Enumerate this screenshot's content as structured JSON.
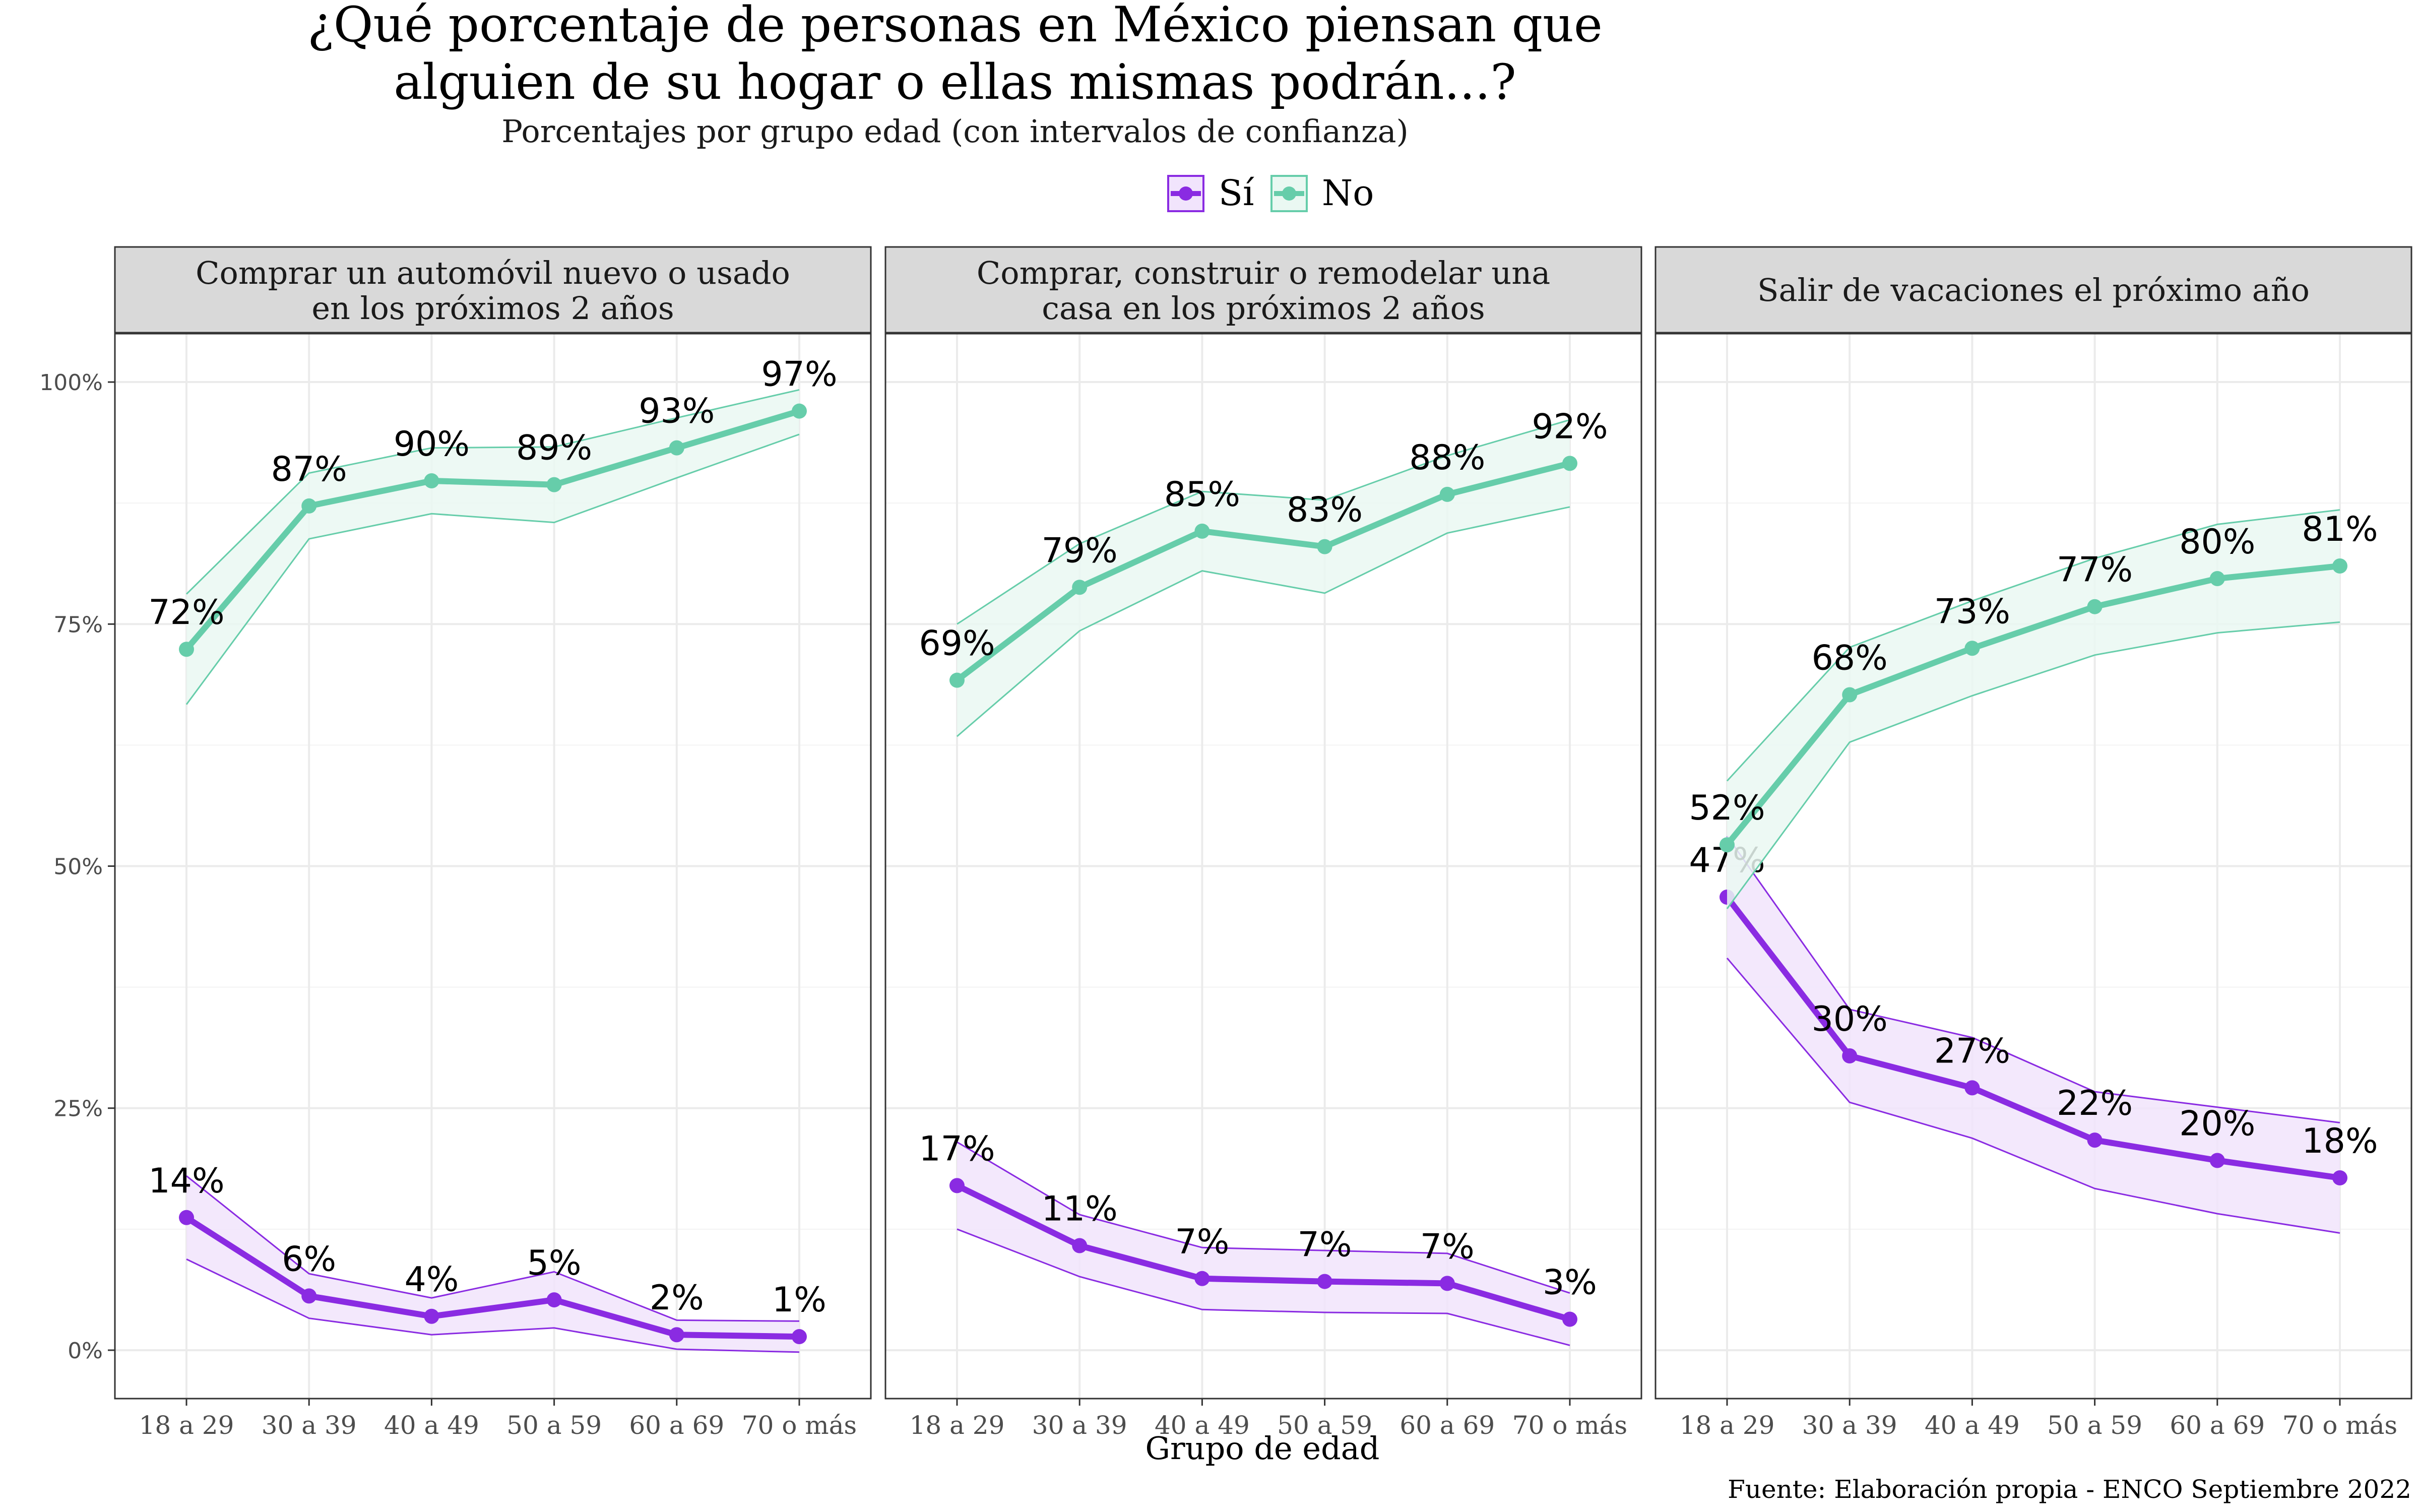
{
  "title_line1": "¿Qué porcentaje de personas en México piensan que",
  "title_line2": "alguien de su hogar o ellas mismas podrán...?",
  "subtitle": "Porcentajes por grupo edad (con intervalos de confianza)",
  "legend": {
    "si": "Sí",
    "no": "No"
  },
  "xlabel": "Grupo de edad",
  "caption": "Fuente: Elaboración propia - ENCO Septiembre 2022",
  "colors": {
    "si": "#8A2BE2",
    "no": "#66CDAA",
    "strip_bg": "#D9D9D9",
    "grid": "#EBEBEB"
  },
  "chart_data": {
    "type": "line",
    "categories": [
      "18 a 29",
      "30 a 39",
      "40 a 49",
      "50 a 59",
      "60 a 69",
      "70 o más"
    ],
    "y_ticks": [
      "0%",
      "25%",
      "50%",
      "75%",
      "100%"
    ],
    "ylim": [
      -5,
      105
    ],
    "legend_position": "top",
    "grid": true,
    "facets": [
      {
        "strip_line1": "Comprar un automóvil nuevo o usado",
        "strip_line2": "en los próximos 2 años",
        "series": [
          {
            "name": "Sí",
            "values": [
              13.7,
              5.6,
              3.5,
              5.2,
              1.6,
              1.4
            ],
            "lower": [
              9.4,
              3.3,
              1.6,
              2.3,
              0.1,
              -0.2
            ],
            "upper": [
              18.0,
              7.9,
              5.4,
              8.1,
              3.1,
              3.0
            ],
            "labels": [
              "14%",
              "6%",
              "4%",
              "5%",
              "2%",
              "1%"
            ]
          },
          {
            "name": "No",
            "values": [
              72.4,
              87.2,
              89.8,
              89.4,
              93.2,
              97.0
            ],
            "lower": [
              66.7,
              83.8,
              86.4,
              85.5,
              90.1,
              94.6
            ],
            "upper": [
              78.1,
              90.6,
              93.2,
              93.3,
              96.3,
              99.2
            ],
            "labels": [
              "72%",
              "87%",
              "90%",
              "89%",
              "93%",
              "97%"
            ]
          }
        ]
      },
      {
        "strip_line1": "Comprar, construir o remodelar una",
        "strip_line2": "casa en los próximos 2 años",
        "series": [
          {
            "name": "Sí",
            "values": [
              17.0,
              10.8,
              7.4,
              7.1,
              6.9,
              3.2
            ],
            "lower": [
              12.5,
              7.6,
              4.2,
              3.9,
              3.8,
              0.5
            ],
            "upper": [
              21.5,
              14.0,
              10.6,
              10.3,
              10.0,
              5.9
            ],
            "labels": [
              "17%",
              "11%",
              "7%",
              "7%",
              "7%",
              "3%"
            ]
          },
          {
            "name": "No",
            "values": [
              69.2,
              78.8,
              84.6,
              83.0,
              88.4,
              91.6
            ],
            "lower": [
              63.4,
              74.3,
              80.5,
              78.2,
              84.4,
              87.1
            ],
            "upper": [
              75.0,
              83.3,
              88.7,
              87.8,
              92.4,
              96.1
            ],
            "labels": [
              "69%",
              "79%",
              "85%",
              "83%",
              "88%",
              "92%"
            ]
          }
        ]
      },
      {
        "strip_line1": "Salir de vacaciones el próximo año",
        "strip_line2": "",
        "series": [
          {
            "name": "Sí",
            "values": [
              46.8,
              30.4,
              27.1,
              21.7,
              19.6,
              17.8
            ],
            "lower": [
              40.5,
              25.6,
              21.9,
              16.7,
              14.1,
              12.1
            ],
            "upper": [
              53.1,
              35.2,
              32.3,
              26.7,
              25.1,
              23.5
            ],
            "labels": [
              "47%",
              "30%",
              "27%",
              "22%",
              "20%",
              "18%"
            ]
          },
          {
            "name": "No",
            "values": [
              52.2,
              67.7,
              72.5,
              76.8,
              79.7,
              81.0
            ],
            "lower": [
              45.6,
              62.8,
              67.6,
              71.8,
              74.1,
              75.2
            ],
            "upper": [
              58.8,
              72.6,
              77.4,
              81.8,
              85.3,
              86.8
            ],
            "labels": [
              "52%",
              "68%",
              "73%",
              "77%",
              "80%",
              "81%"
            ]
          }
        ]
      }
    ]
  }
}
